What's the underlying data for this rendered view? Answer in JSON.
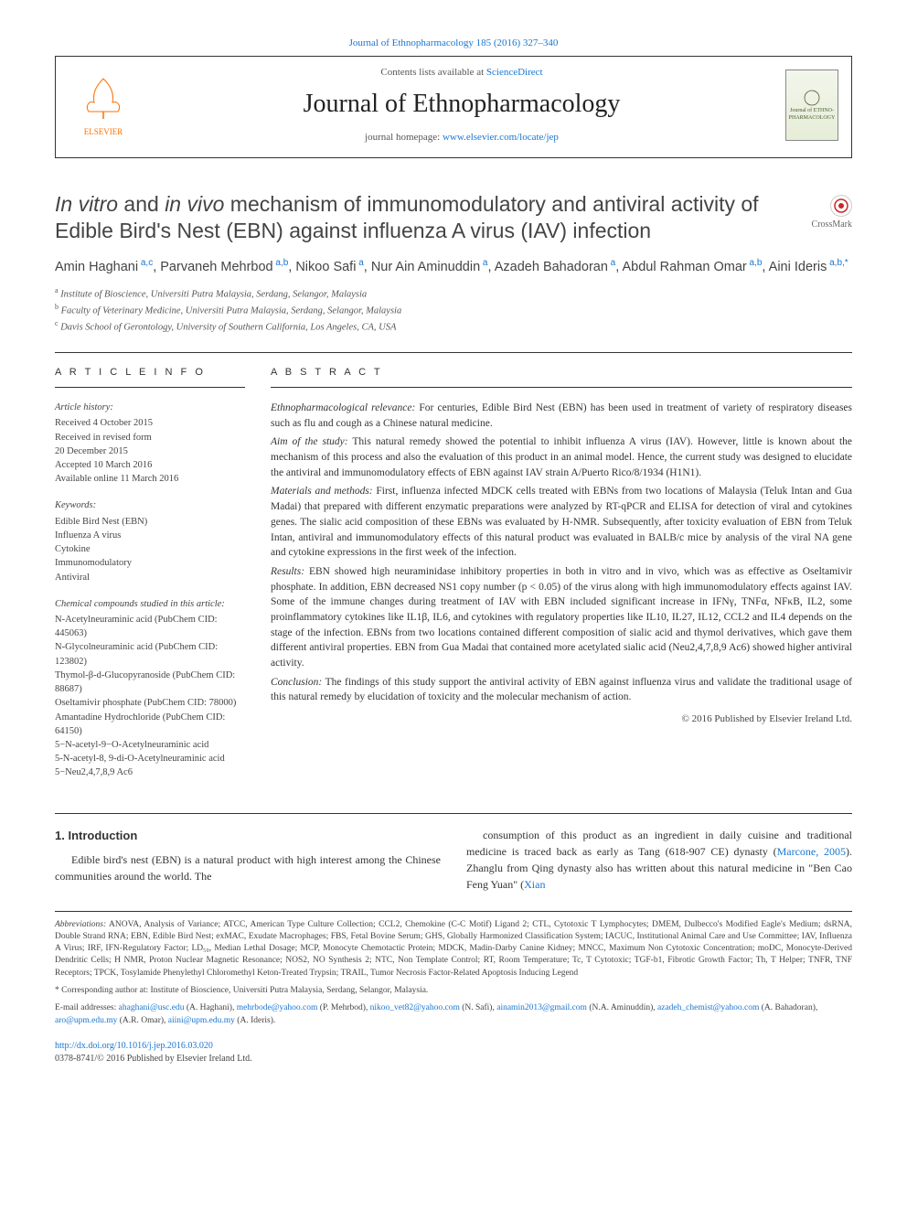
{
  "top_link": {
    "journal_ref": "Journal of Ethnopharmacology 185 (2016) 327–340"
  },
  "masthead": {
    "contents_pre": "Contents lists available at ",
    "contents_link": "ScienceDirect",
    "journal_name": "Journal of Ethnopharmacology",
    "homepage_pre": "journal homepage: ",
    "homepage_link": "www.elsevier.com/locate/jep",
    "elsevier_label": "ELSEVIER",
    "cover_text": "Journal of ETHNO-PHARMACOLOGY"
  },
  "crossmark": "CrossMark",
  "article": {
    "title_pre_italic1": "In vitro",
    "title_mid1": " and ",
    "title_italic2": "in vivo",
    "title_rest": " mechanism of immunomodulatory and antiviral activity of Edible Bird's Nest (EBN) against influenza A virus (IAV) infection",
    "authors_html": "Amin Haghani",
    "authors": [
      {
        "name": "Amin Haghani",
        "sup": "a,c"
      },
      {
        "name": "Parvaneh Mehrbod",
        "sup": "a,b"
      },
      {
        "name": "Nikoo Safi",
        "sup": "a"
      },
      {
        "name": "Nur Ain Aminuddin",
        "sup": "a"
      },
      {
        "name": "Azadeh Bahadoran",
        "sup": "a"
      },
      {
        "name": "Abdul Rahman Omar",
        "sup": "a,b"
      },
      {
        "name": "Aini Ideris",
        "sup": "a,b,*"
      }
    ],
    "affiliations": [
      {
        "sup": "a",
        "text": "Institute of Bioscience, Universiti Putra Malaysia, Serdang, Selangor, Malaysia"
      },
      {
        "sup": "b",
        "text": "Faculty of Veterinary Medicine, Universiti Putra Malaysia, Serdang, Selangor, Malaysia"
      },
      {
        "sup": "c",
        "text": "Davis School of Gerontology, University of Southern California, Los Angeles, CA, USA"
      }
    ]
  },
  "article_info": {
    "label": "A R T I C L E  I N F O",
    "history_heading": "Article history:",
    "history": [
      "Received 4 October 2015",
      "Received in revised form",
      "20 December 2015",
      "Accepted 10 March 2016",
      "Available online 11 March 2016"
    ],
    "keywords_heading": "Keywords:",
    "keywords": [
      "Edible Bird Nest (EBN)",
      "Influenza A virus",
      "Cytokine",
      "Immunomodulatory",
      "Antiviral"
    ],
    "compounds_heading": "Chemical compounds studied in this article:",
    "compounds": [
      "N-Acetylneuraminic acid (PubChem CID: 445063)",
      "N-Glycolneuraminic acid (PubChem CID: 123802)",
      "Thymol-β-d-Glucopyranoside (PubChem CID: 88687)",
      "Oseltamivir phosphate (PubChem CID: 78000)",
      "Amantadine Hydrochloride (PubChem CID: 64150)",
      "5−N-acetyl-9−O-Acetylneuraminic acid",
      "5-N-acetyl-8, 9-di-O-Acetylneuraminic acid",
      "5−Neu2,4,7,8,9 Ac6"
    ]
  },
  "abstract": {
    "label": "A B S T R A C T",
    "paragraphs": [
      {
        "label": "Ethnopharmacological relevance:",
        "text": " For centuries, Edible Bird Nest (EBN) has been used in treatment of variety of respiratory diseases such as flu and cough as a Chinese natural medicine."
      },
      {
        "label": "Aim of the study:",
        "text": " This natural remedy showed the potential to inhibit influenza A virus (IAV). However, little is known about the mechanism of this process and also the evaluation of this product in an animal model. Hence, the current study was designed to elucidate the antiviral and immunomodulatory effects of EBN against IAV strain A/Puerto Rico/8/1934 (H1N1)."
      },
      {
        "label": "Materials and methods:",
        "text": " First, influenza infected MDCK cells treated with EBNs from two locations of Malaysia (Teluk Intan and Gua Madai) that prepared with different enzymatic preparations were analyzed by RT-qPCR and ELISA for detection of viral and cytokines genes. The sialic acid composition of these EBNs was evaluated by H-NMR. Subsequently, after toxicity evaluation of EBN from Teluk Intan, antiviral and immunomodulatory effects of this natural product was evaluated in BALB/c mice by analysis of the viral NA gene and cytokine expressions in the first week of the infection."
      },
      {
        "label": "Results:",
        "text": " EBN showed high neuraminidase inhibitory properties in both in vitro and in vivo, which was as effective as Oseltamivir phosphate. In addition, EBN decreased NS1 copy number (p < 0.05) of the virus along with high immunomodulatory effects against IAV. Some of the immune changes during treatment of IAV with EBN included significant increase in IFNγ, TNFα, NFκB, IL2, some proinflammatory cytokines like IL1β, IL6, and cytokines with regulatory properties like IL10, IL27, IL12, CCL2 and IL4 depends on the stage of the infection. EBNs from two locations contained different composition of sialic acid and thymol derivatives, which gave them different antiviral properties. EBN from Gua Madai that contained more acetylated sialic acid (Neu2,4,7,8,9 Ac6) showed higher antiviral activity."
      },
      {
        "label": "Conclusion:",
        "text": " The findings of this study support the antiviral activity of EBN against influenza virus and validate the traditional usage of this natural remedy by elucidation of toxicity and the molecular mechanism of action."
      }
    ],
    "copyright": "© 2016 Published by Elsevier Ireland Ltd."
  },
  "intro": {
    "heading": "1. Introduction",
    "col1": "Edible bird's nest (EBN) is a natural product with high interest among the Chinese communities around the world. The",
    "col2_pre": "consumption of this product as an ingredient in daily cuisine and traditional medicine is traced back as early as Tang (618-907 CE) dynasty (",
    "col2_link1": "Marcone, 2005",
    "col2_mid": "). Zhanglu from Qing dynasty also has written about this natural medicine in \"Ben Cao Feng Yuan\" (",
    "col2_link2": "Xian"
  },
  "footer": {
    "abbrev_label": "Abbreviations:",
    "abbrev_text": " ANOVA, Analysis of Variance; ATCC, American Type Culture Collection; CCL2, Chemokine (C-C Motif) Ligand 2; CTL, Cytotoxic T Lymphocytes; DMEM, Dulbecco's Modified Eagle's Medium; dsRNA, Double Strand RNA; EBN, Edible Bird Nest; exMAC, Exudate Macrophages; FBS, Fetal Bovine Serum; GHS, Globally Harmonized Classification System; IACUC, Institutional Animal Care and Use Committee; IAV, Influenza A Virus; IRF, IFN-Regulatory Factor; LD₅₀, Median Lethal Dosage; MCP, Monocyte Chemotactic Protein; MDCK, Madin-Darby Canine Kidney; MNCC, Maximum Non Cytotoxic Concentration; moDC, Monocyte-Derived Dendritic Cells; H NMR, Proton Nuclear Magnetic Resonance; NOS2, NO Synthesis 2; NTC, Non Template Control; RT, Room Temperature; Tc, T Cytotoxic; TGF-b1, Fibrotic Growth Factor; Th, T Helper; TNFR, TNF Receptors; TPCK, Tosylamide Phenylethyl Chloromethyl Keton-Treated Trypsin; TRAIL, Tumor Necrosis Factor-Related Apoptosis Inducing Legend",
    "corresponding": "* Corresponding author at: Institute of Bioscience, Universiti Putra Malaysia, Serdang, Selangor, Malaysia.",
    "emails_label": "E-mail addresses:",
    "emails": [
      {
        "addr": "ahaghani@usc.edu",
        "who": "(A. Haghani)"
      },
      {
        "addr": "mehrbode@yahoo.com",
        "who": "(P. Mehrbod)"
      },
      {
        "addr": "nikoo_vet82@yahoo.com",
        "who": "(N. Safi)"
      },
      {
        "addr": "ainamin2013@gmail.com",
        "who": "(N.A. Aminuddin)"
      },
      {
        "addr": "azadeh_chemist@yahoo.com",
        "who": "(A. Bahadoran)"
      },
      {
        "addr": "aro@upm.edu.my",
        "who": "(A.R. Omar)"
      },
      {
        "addr": "aiini@upm.edu.my",
        "who": "(A. Ideris)."
      }
    ],
    "doi": "http://dx.doi.org/10.1016/j.jep.2016.03.020",
    "issn_line": "0378-8741/© 2016 Published by Elsevier Ireland Ltd."
  },
  "colors": {
    "link": "#1976d2",
    "elsevier_orange": "#ff6f00",
    "text": "#333333",
    "border": "#333333"
  }
}
